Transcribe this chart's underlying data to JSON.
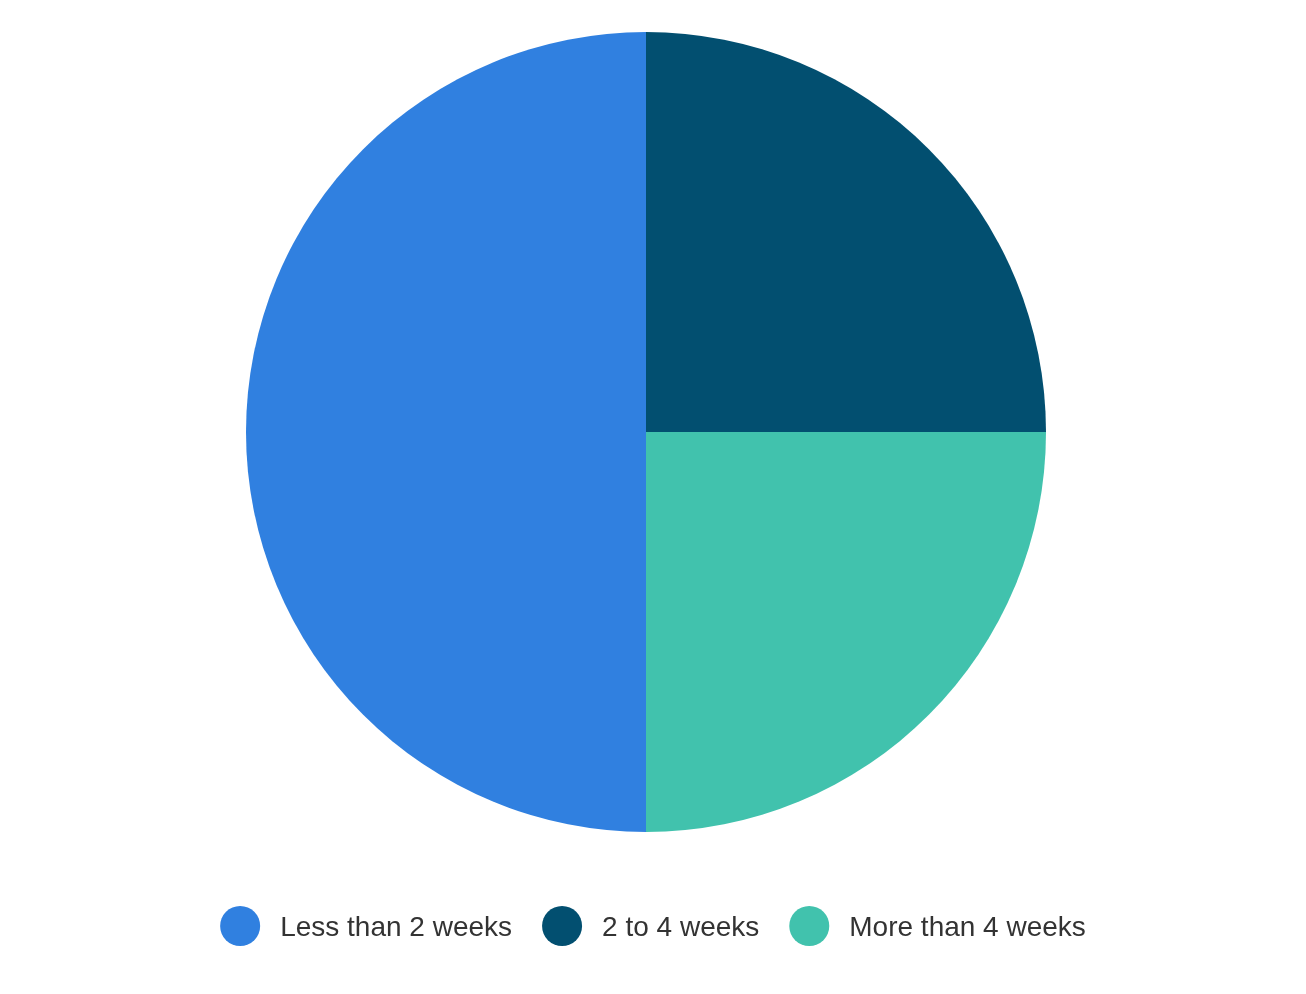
{
  "chart_data": {
    "type": "pie",
    "categories": [
      "Less than 2 weeks",
      "2 to 4 weeks",
      "More than 4 weeks"
    ],
    "values": [
      50,
      25,
      25
    ],
    "colors": [
      "#3080e0",
      "#024f70",
      "#41c2ad"
    ],
    "legend": "bottom"
  }
}
